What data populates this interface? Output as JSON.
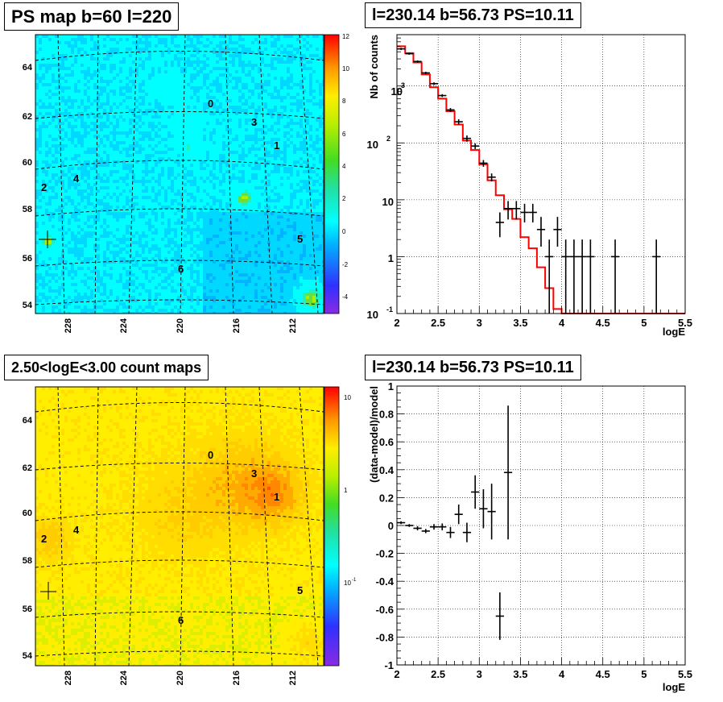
{
  "panels": {
    "ps_map": {
      "title": "PS map b=60 l=220"
    },
    "count_map": {
      "title": "2.50<logE<3.00 count maps"
    },
    "spectrum": {
      "title": "l=230.14 b=56.73 PS=10.11"
    },
    "residual": {
      "title": "l=230.14 b=56.73 PS=10.11"
    }
  },
  "chart_data": [
    {
      "type": "heatmap",
      "panel": "ps_map",
      "title": "PS map b=60 l=220",
      "x_ticks": [
        "228",
        "224",
        "220",
        "216",
        "212"
      ],
      "y_ticks": [
        "64",
        "62",
        "60",
        "58",
        "56",
        "54"
      ],
      "colorbar": {
        "scale": "linear",
        "range": [
          -5,
          12
        ],
        "ticks": [
          "12",
          "10",
          "8",
          "6",
          "4",
          "2",
          "0",
          "-2",
          "-4"
        ]
      },
      "source_labels": [
        "0",
        "1",
        "2",
        "3",
        "4",
        "5",
        "6"
      ],
      "grid": true
    },
    {
      "type": "line",
      "panel": "spectrum",
      "title": "l=230.14 b=56.73 PS=10.11",
      "xlabel": "logE",
      "ylabel": "Nb of counts",
      "xlim": [
        2,
        5.5
      ],
      "ylim": [
        0.1,
        8000
      ],
      "yscale": "log",
      "x_ticks": [
        "2",
        "2.5",
        "3",
        "3.5",
        "4",
        "4.5",
        "5",
        "5.5"
      ],
      "y_ticks": [
        "10",
        "1",
        "10^-1"
      ],
      "grid": true,
      "series": [
        {
          "kind": "points_with_errorbars",
          "color": "#000000",
          "points": [
            [
              2.05,
              4500,
              4300,
              4700
            ],
            [
              2.15,
              3700,
              3550,
              3850
            ],
            [
              2.25,
              2700,
              2580,
              2820
            ],
            [
              2.35,
              1700,
              1620,
              1780
            ],
            [
              2.45,
              1100,
              1040,
              1160
            ],
            [
              2.55,
              680,
              640,
              720
            ],
            [
              2.65,
              380,
              350,
              410
            ],
            [
              2.75,
              235,
              210,
              260
            ],
            [
              2.85,
              120,
              105,
              135
            ],
            [
              2.95,
              88,
              78,
              98
            ],
            [
              3.05,
              44,
              38,
              50
            ],
            [
              3.15,
              25,
              21,
              29
            ],
            [
              3.25,
              4,
              2.2,
              6
            ],
            [
              3.35,
              7,
              4.5,
              9.5
            ],
            [
              3.45,
              7,
              4.5,
              9.5
            ],
            [
              3.55,
              6,
              4,
              8.5
            ],
            [
              3.65,
              6,
              4,
              8.5
            ],
            [
              3.75,
              3,
              1.5,
              5
            ],
            [
              3.85,
              1,
              0.1,
              2
            ],
            [
              3.95,
              3,
              1.5,
              5
            ],
            [
              4.05,
              1,
              0.1,
              2
            ],
            [
              4.15,
              1,
              0.1,
              2
            ],
            [
              4.25,
              1,
              0.1,
              2
            ],
            [
              4.35,
              1,
              0.1,
              2
            ],
            [
              4.65,
              1,
              0.1,
              2
            ],
            [
              5.15,
              1,
              0.1,
              2
            ]
          ]
        },
        {
          "kind": "step",
          "color": "#ff0000",
          "x_edges": [
            2.0,
            2.1,
            2.2,
            2.3,
            2.4,
            2.5,
            2.6,
            2.7,
            2.8,
            2.9,
            3.0,
            3.1,
            3.2,
            3.3,
            3.4,
            3.5,
            3.6,
            3.7,
            3.8,
            3.9,
            4.0,
            5.5
          ],
          "values": [
            5000,
            3800,
            2600,
            1600,
            950,
            600,
            360,
            210,
            110,
            75,
            42,
            22,
            12,
            6.8,
            4.6,
            2.2,
            1.4,
            0.65,
            0.28,
            0.12,
            0.1
          ]
        }
      ]
    },
    {
      "type": "heatmap",
      "panel": "count_map",
      "title": "2.50<logE<3.00 count maps",
      "x_ticks": [
        "228",
        "224",
        "220",
        "216",
        "212"
      ],
      "y_ticks": [
        "64",
        "62",
        "60",
        "58",
        "56",
        "54"
      ],
      "colorbar": {
        "scale": "log",
        "range": [
          0.03,
          14
        ],
        "ticks": [
          "10",
          "1",
          "10^-1"
        ]
      },
      "source_labels": [
        "0",
        "1",
        "2",
        "3",
        "4",
        "5",
        "6"
      ],
      "grid": true
    },
    {
      "type": "scatter",
      "panel": "residual",
      "title": "l=230.14 b=56.73 PS=10.11",
      "xlabel": "logE",
      "ylabel": "(data-model)/model",
      "xlim": [
        2,
        5.5
      ],
      "ylim": [
        -1,
        1
      ],
      "x_ticks": [
        "2",
        "2.5",
        "3",
        "3.5",
        "4",
        "4.5",
        "5",
        "5.5"
      ],
      "y_ticks": [
        "1",
        "0.8",
        "0.6",
        "0.4",
        "0.2",
        "0",
        "-0.2",
        "-0.4",
        "-0.6",
        "-0.8",
        "-1"
      ],
      "grid": true,
      "series": [
        {
          "kind": "points_with_errorbars",
          "color": "#000000",
          "points": [
            [
              2.05,
              0.02,
              0.01
            ],
            [
              2.15,
              0.0,
              0.01
            ],
            [
              2.25,
              -0.02,
              0.015
            ],
            [
              2.35,
              -0.04,
              0.015
            ],
            [
              2.45,
              -0.01,
              0.02
            ],
            [
              2.55,
              -0.01,
              0.025
            ],
            [
              2.65,
              -0.05,
              0.04
            ],
            [
              2.75,
              0.08,
              0.07
            ],
            [
              2.85,
              -0.05,
              0.07
            ],
            [
              2.95,
              0.24,
              0.12
            ],
            [
              3.05,
              0.12,
              0.14
            ],
            [
              3.15,
              0.1,
              0.2
            ],
            [
              3.25,
              -0.65,
              0.17
            ],
            [
              3.35,
              0.38,
              0.48
            ]
          ]
        }
      ]
    }
  ]
}
